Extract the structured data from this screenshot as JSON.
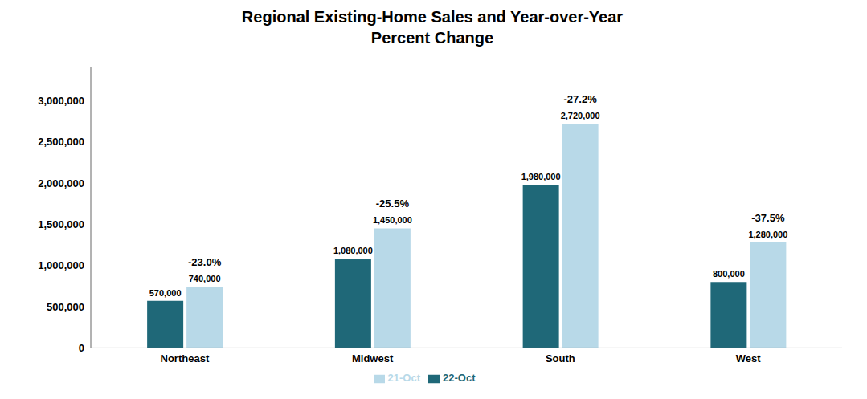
{
  "chart_data": {
    "type": "bar",
    "title": "Regional Existing-Home Sales and Year-over-Year\nPercent Change",
    "categories": [
      "Northeast",
      "Midwest",
      "South",
      "West"
    ],
    "series": [
      {
        "name": "22-Oct",
        "color": "#1f6878",
        "values": [
          570000,
          1080000,
          1980000,
          800000
        ],
        "value_labels": [
          "570,000",
          "1,080,000",
          "1,980,000",
          "800,000"
        ]
      },
      {
        "name": "21-Oct",
        "color": "#b8d9e8",
        "values": [
          740000,
          1450000,
          2720000,
          1280000
        ],
        "value_labels": [
          "740,000",
          "1,450,000",
          "2,720,000",
          "1,280,000"
        ]
      }
    ],
    "annotations": [
      "-23.0%",
      "-25.5%",
      "-27.2%",
      "-37.5%"
    ],
    "ylim": [
      0,
      3400000
    ],
    "yticks": [
      0,
      {
        "value": 500000,
        "label": "500,000"
      },
      {
        "value": 1000000,
        "label": "1,000,000"
      },
      {
        "value": 1500000,
        "label": "1,500,000"
      },
      {
        "value": 2000000,
        "label": "2,000,000"
      },
      {
        "value": 2500000,
        "label": "2,500,000"
      },
      {
        "value": 3000000,
        "label": "3,000,000"
      }
    ],
    "data_labels": true,
    "legend": "bottom",
    "grid": false
  }
}
